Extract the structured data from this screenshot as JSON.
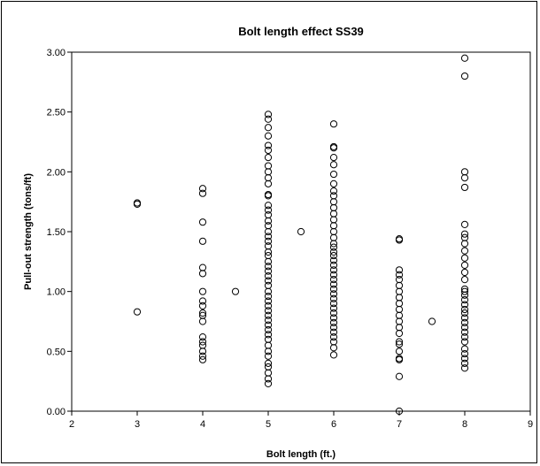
{
  "chart_data": {
    "type": "scatter",
    "title": "Bolt length effect SS39",
    "xlabel": "Bolt length (ft.)",
    "ylabel": "Pull-out strength (tons/ft)",
    "xlim": [
      2,
      9
    ],
    "ylim": [
      0,
      3
    ],
    "x_ticks": [
      "2",
      "3",
      "4",
      "5",
      "6",
      "7",
      "8",
      "9"
    ],
    "y_ticks": [
      "0.00",
      "0.50",
      "1.00",
      "1.50",
      "2.00",
      "2.50",
      "3.00"
    ],
    "grid": false,
    "legend": "none",
    "marker": "open-circle",
    "series": [
      {
        "points": [
          [
            3,
            1.73
          ],
          [
            3,
            1.74
          ],
          [
            3,
            0.83
          ],
          [
            4,
            1.86
          ],
          [
            4,
            1.82
          ],
          [
            4,
            1.58
          ],
          [
            4,
            1.42
          ],
          [
            4,
            1.2
          ],
          [
            4,
            1.15
          ],
          [
            4,
            1.0
          ],
          [
            4,
            0.92
          ],
          [
            4,
            0.88
          ],
          [
            4,
            0.82
          ],
          [
            4,
            0.8
          ],
          [
            4,
            0.75
          ],
          [
            4,
            0.62
          ],
          [
            4,
            0.58
          ],
          [
            4,
            0.55
          ],
          [
            4,
            0.5
          ],
          [
            4,
            0.46
          ],
          [
            4,
            0.43
          ],
          [
            4.5,
            1.0
          ],
          [
            5.5,
            1.5
          ],
          [
            7.5,
            0.75
          ],
          [
            5,
            2.48
          ],
          [
            5,
            2.44
          ],
          [
            5,
            2.37
          ],
          [
            5,
            2.3
          ],
          [
            5,
            2.22
          ],
          [
            5,
            2.18
          ],
          [
            5,
            2.12
          ],
          [
            5,
            2.05
          ],
          [
            5,
            2.0
          ],
          [
            5,
            1.95
          ],
          [
            5,
            1.9
          ],
          [
            5,
            1.81
          ],
          [
            5,
            1.8
          ],
          [
            5,
            1.72
          ],
          [
            5,
            1.68
          ],
          [
            5,
            1.64
          ],
          [
            5,
            1.59
          ],
          [
            5,
            1.55
          ],
          [
            5,
            1.5
          ],
          [
            5,
            1.46
          ],
          [
            5,
            1.42
          ],
          [
            5,
            1.38
          ],
          [
            5,
            1.33
          ],
          [
            5,
            1.3
          ],
          [
            5,
            1.25
          ],
          [
            5,
            1.21
          ],
          [
            5,
            1.17
          ],
          [
            5,
            1.13
          ],
          [
            5,
            1.09
          ],
          [
            5,
            1.05
          ],
          [
            5,
            1.0
          ],
          [
            5,
            0.96
          ],
          [
            5,
            0.92
          ],
          [
            5,
            0.88
          ],
          [
            5,
            0.84
          ],
          [
            5,
            0.8
          ],
          [
            5,
            0.76
          ],
          [
            5,
            0.72
          ],
          [
            5,
            0.68
          ],
          [
            5,
            0.64
          ],
          [
            5,
            0.6
          ],
          [
            5,
            0.55
          ],
          [
            5,
            0.5
          ],
          [
            5,
            0.46
          ],
          [
            5,
            0.4
          ],
          [
            5,
            0.37
          ],
          [
            5,
            0.32
          ],
          [
            5,
            0.27
          ],
          [
            5,
            0.23
          ],
          [
            6,
            2.4
          ],
          [
            6,
            2.2
          ],
          [
            6,
            2.21
          ],
          [
            6,
            2.12
          ],
          [
            6,
            2.06
          ],
          [
            6,
            1.98
          ],
          [
            6,
            1.9
          ],
          [
            6,
            1.84
          ],
          [
            6,
            1.8
          ],
          [
            6,
            1.75
          ],
          [
            6,
            1.7
          ],
          [
            6,
            1.65
          ],
          [
            6,
            1.6
          ],
          [
            6,
            1.55
          ],
          [
            6,
            1.5
          ],
          [
            6,
            1.45
          ],
          [
            6,
            1.4
          ],
          [
            6,
            1.37
          ],
          [
            6,
            1.33
          ],
          [
            6,
            1.3
          ],
          [
            6,
            1.26
          ],
          [
            6,
            1.22
          ],
          [
            6,
            1.18
          ],
          [
            6,
            1.14
          ],
          [
            6,
            1.1
          ],
          [
            6,
            1.06
          ],
          [
            6,
            1.02
          ],
          [
            6,
            0.98
          ],
          [
            6,
            0.94
          ],
          [
            6,
            0.9
          ],
          [
            6,
            0.86
          ],
          [
            6,
            0.82
          ],
          [
            6,
            0.78
          ],
          [
            6,
            0.74
          ],
          [
            6,
            0.7
          ],
          [
            6,
            0.66
          ],
          [
            6,
            0.62
          ],
          [
            6,
            0.58
          ],
          [
            6,
            0.53
          ],
          [
            6,
            0.47
          ],
          [
            7,
            1.43
          ],
          [
            7,
            1.44
          ],
          [
            7,
            1.18
          ],
          [
            7,
            1.14
          ],
          [
            7,
            1.1
          ],
          [
            7,
            1.05
          ],
          [
            7,
            1.0
          ],
          [
            7,
            0.95
          ],
          [
            7,
            0.9
          ],
          [
            7,
            0.85
          ],
          [
            7,
            0.8
          ],
          [
            7,
            0.75
          ],
          [
            7,
            0.7
          ],
          [
            7,
            0.65
          ],
          [
            7,
            0.58
          ],
          [
            7,
            0.56
          ],
          [
            7,
            0.5
          ],
          [
            7,
            0.44
          ],
          [
            7,
            0.43
          ],
          [
            7,
            0.29
          ],
          [
            7,
            0.0
          ],
          [
            8,
            2.95
          ],
          [
            8,
            2.8
          ],
          [
            8,
            2.0
          ],
          [
            8,
            1.95
          ],
          [
            8,
            1.87
          ],
          [
            8,
            1.56
          ],
          [
            8,
            1.48
          ],
          [
            8,
            1.45
          ],
          [
            8,
            1.4
          ],
          [
            8,
            1.34
          ],
          [
            8,
            1.28
          ],
          [
            8,
            1.22
          ],
          [
            8,
            1.16
          ],
          [
            8,
            1.1
          ],
          [
            8,
            1.02
          ],
          [
            8,
            1.0
          ],
          [
            8,
            0.97
          ],
          [
            8,
            0.93
          ],
          [
            8,
            0.89
          ],
          [
            8,
            0.85
          ],
          [
            8,
            0.82
          ],
          [
            8,
            0.78
          ],
          [
            8,
            0.74
          ],
          [
            8,
            0.7
          ],
          [
            8,
            0.66
          ],
          [
            8,
            0.62
          ],
          [
            8,
            0.58
          ],
          [
            8,
            0.52
          ],
          [
            8,
            0.48
          ],
          [
            8,
            0.44
          ],
          [
            8,
            0.4
          ],
          [
            8,
            0.36
          ]
        ]
      }
    ]
  }
}
